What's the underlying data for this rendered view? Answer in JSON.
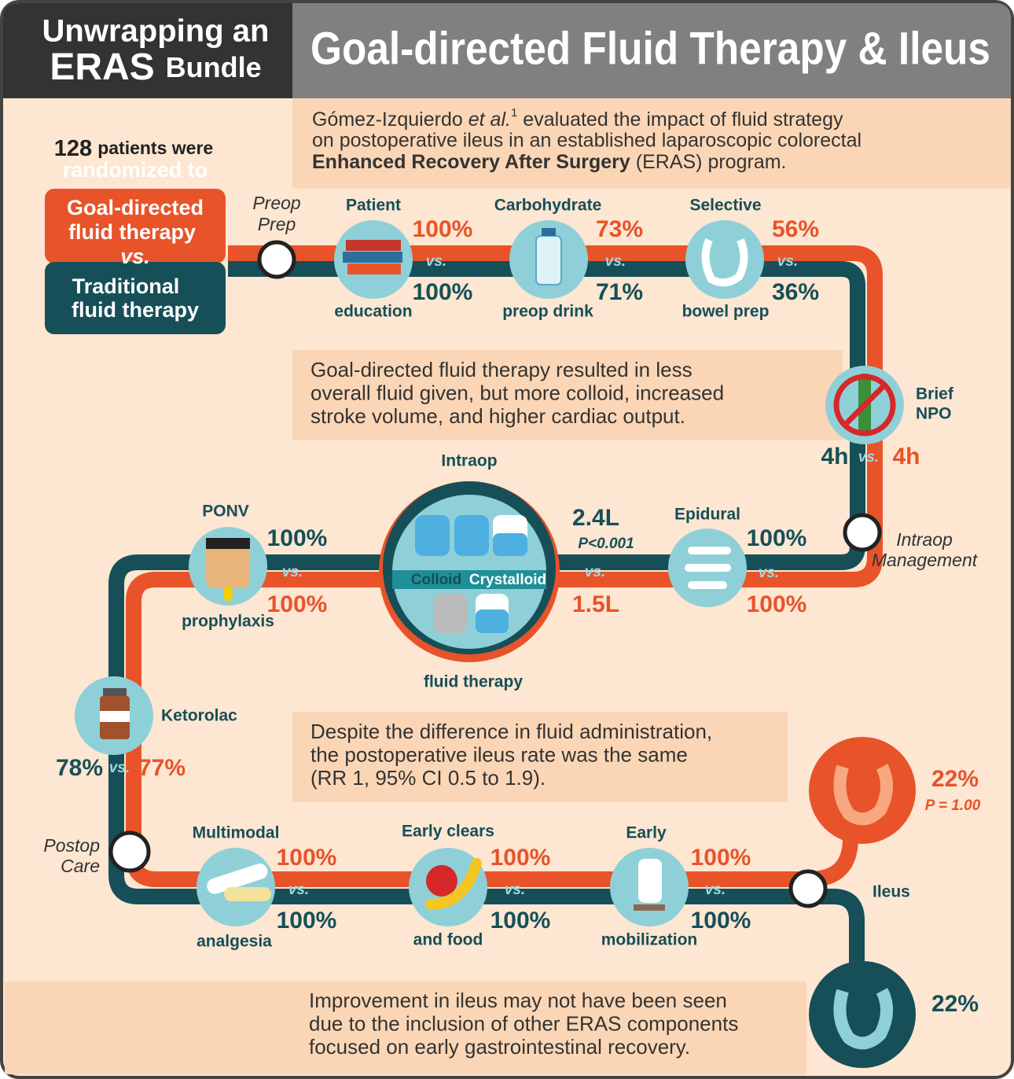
{
  "header": {
    "line1": "Unwrapping an",
    "line2": "ERAS",
    "line2_small": "Bundle",
    "title": "Goal-directed Fluid Therapy & Ileus"
  },
  "intro": {
    "author": "Gómez-Izquierdo",
    "etal": "et al.",
    "ref": "1",
    "line1_rest": "evaluated the impact of fluid strategy",
    "line2": "on postoperative ileus in an established laparoscopic colorectal",
    "bold": "Enhanced Recovery After Surgery",
    "line3_rest": "(ERAS) program."
  },
  "randomized": {
    "count": "128",
    "text1": "patients were",
    "text2": "randomized to"
  },
  "arms": {
    "goal": [
      "Goal-directed",
      "fluid therapy"
    ],
    "vs": "vs.",
    "traditional": [
      "Traditional",
      "fluid therapy"
    ]
  },
  "stages": [
    {
      "label": [
        "Preop",
        "Prep"
      ]
    },
    {
      "label": [
        "Intraop",
        "Management"
      ]
    },
    {
      "label": [
        "Postop",
        "Care"
      ]
    },
    {
      "label": [
        "Ileus"
      ]
    }
  ],
  "vs_label": "vs.",
  "components": [
    {
      "top": "Patient",
      "bottom": "education",
      "goal": "100%",
      "traditional": "100%"
    },
    {
      "top": "Carbohydrate",
      "bottom": "preop drink",
      "goal": "73%",
      "traditional": "71%"
    },
    {
      "top": "Selective",
      "bottom": "bowel prep",
      "goal": "56%",
      "traditional": "36%"
    },
    {
      "top": "Brief",
      "bottom": "NPO",
      "goal": "4h",
      "traditional": "4h"
    },
    {
      "top": "Epidural",
      "goal": "100%",
      "traditional": "100%"
    },
    {
      "top": "Intraop",
      "bottom": "fluid therapy",
      "goal": "1.5L",
      "traditional": "2.4L",
      "p": "P<0.001",
      "colloid": "Colloid",
      "crystalloid": "Crystalloid"
    },
    {
      "top": "PONV",
      "bottom": "prophylaxis",
      "goal": "100%",
      "traditional": "100%"
    },
    {
      "top": "Ketorolac",
      "goal": "77%",
      "traditional": "78%"
    },
    {
      "top": "Multimodal",
      "bottom": "analgesia",
      "goal": "100%",
      "traditional": "100%"
    },
    {
      "top": "Early clears",
      "bottom": "and food",
      "goal": "100%",
      "traditional": "100%"
    },
    {
      "top": "Early",
      "bottom": "mobilization",
      "goal": "100%",
      "traditional": "100%"
    }
  ],
  "ileus": {
    "goal": "22%",
    "p": "P = 1.00",
    "traditional": "22%"
  },
  "findings": [
    [
      "Goal-directed fluid therapy resulted in less",
      "overall fluid given, but more colloid, increased",
      "stroke volume, and higher cardiac output."
    ],
    [
      "Despite the difference in fluid administration,",
      "the postoperative ileus rate was the same",
      "(RR 1, 95% CI 0.5 to 1.9)."
    ],
    [
      "Improvement in ileus may not have been seen",
      "due to the inclusion of other ERAS components",
      "focused on early gastrointestinal recovery."
    ]
  ]
}
